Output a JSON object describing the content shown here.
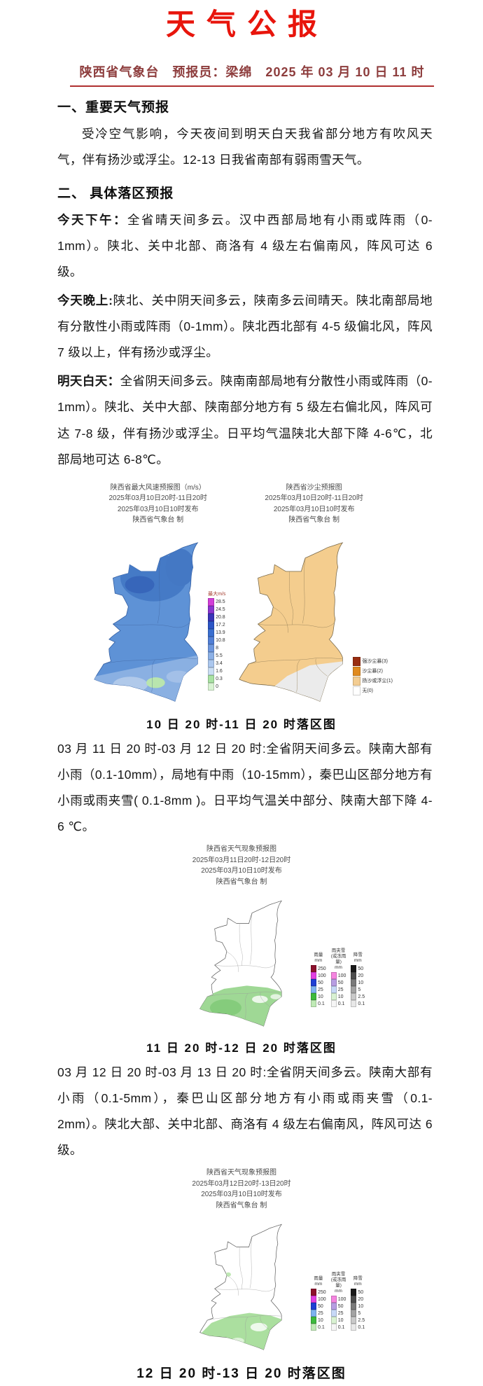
{
  "page": {
    "title": "天气公报"
  },
  "header": {
    "issuer_line": "陕西省气象台　预报员：梁绵　2025 年 03 月 10 日 11 时"
  },
  "section1": {
    "heading": "一、重要天气预报",
    "para": "受冷空气影响，今天夜间到明天白天我省部分地方有吹风天气，伴有扬沙或浮尘。12-13 日我省南部有弱雨雪天气。"
  },
  "section2": {
    "heading": "二、 具体落区预报",
    "today_pm_label": "今天下午：",
    "today_pm_text": "全省晴天间多云。汉中西部局地有小雨或阵雨（0-1mm）。陕北、关中北部、商洛有 4 级左右偏南风，阵风可达 6 级。",
    "tonight_label": "今天晚上:",
    "tonight_text": "陕北、关中阴天间多云，陕南多云间晴天。陕北南部局地有分散性小雨或阵雨（0-1mm）。陕北西北部有 4-5 级偏北风，阵风 7 级以上，伴有扬沙或浮尘。",
    "tomorrow_label": "明天白天：",
    "tomorrow_text": "全省阴天间多云。陕南南部局地有分散性小雨或阵雨（0-1mm）。陕北、关中大部、陕南部分地方有 5 级左右偏北风，阵风可达 7-8 级，伴有扬沙或浮尘。日平均气温陕北大部下降 4-6℃，北部局地可达 6-8℃。",
    "d11_text": "03 月 11 日 20 时-03 月 12 日 20 时:全省阴天间多云。陕南大部有小雨（0.1-10mm），局地有中雨（10-15mm），秦巴山区部分地方有小雨或雨夹雪( 0.1-8mm )。日平均气温关中部分、陕南大部下降 4-6 ℃。",
    "d12_text": "03 月 12 日 20 时-03 月 13 日 20 时:全省阴天间多云。陕南大部有小雨（0.1-5mm），秦巴山区部分地方有小雨或雨夹雪（0.1-2mm）。陕北大部、关中北部、商洛有 4 级左右偏南风，阵风可达 6 级。"
  },
  "captions": {
    "c1": "10 日 20 时-11 日 20 时落区图",
    "c2": "11 日 20 时-12 日 20 时落区图",
    "c3": "12 日 20 时-13 日 20 时落区图"
  },
  "maps": {
    "wind": {
      "title1": "陕西省最大风速预报图（m/s）",
      "title2": "2025年03月10日20时-11日20时",
      "title3": "2025年03月10日10时发布",
      "title4": "陕西省气象台 制",
      "legend_title": "最大m/s",
      "legend": [
        {
          "v": "28.5",
          "c": "#d23ed8"
        },
        {
          "v": "24.5",
          "c": "#8a35cf"
        },
        {
          "v": "20.8",
          "c": "#3a34b8"
        },
        {
          "v": "17.2",
          "c": "#2c55c6"
        },
        {
          "v": "13.9",
          "c": "#3a6fd0"
        },
        {
          "v": "10.8",
          "c": "#517fd6"
        },
        {
          "v": "8",
          "c": "#6d97de"
        },
        {
          "v": "5.5",
          "c": "#8cb0e6"
        },
        {
          "v": "3.4",
          "c": "#abc7ee"
        },
        {
          "v": "1.6",
          "c": "#cadef4"
        },
        {
          "v": "0.3",
          "c": "#a9e2a3"
        },
        {
          "v": "0",
          "c": "#d8f3d2"
        }
      ]
    },
    "dust": {
      "title1": "陕西省沙尘预报图",
      "title2": "2025年03月10日20时-11日20时",
      "title3": "2025年03月10日10时发布",
      "title4": "陕西省气象台 制",
      "legend": [
        {
          "label": "强沙尘暴(3)",
          "c": "#992d10"
        },
        {
          "label": "沙尘暴(2)",
          "c": "#e08a1e"
        },
        {
          "label": "扬沙或浮尘(1)",
          "c": "#f3cd92"
        },
        {
          "label": "无(0)",
          "c": "#ffffff"
        }
      ]
    },
    "wx11": {
      "title1": "陕西省天气现象预报图",
      "title2": "2025年03月11日20时-12日20时",
      "title3": "2025年03月10日10时发布",
      "title4": "陕西省气象台 制"
    },
    "wx12": {
      "title1": "陕西省天气现象预报图",
      "title2": "2025年03月12日20时-13日20时",
      "title3": "2025年03月10日10时发布",
      "title4": "陕西省气象台 制"
    },
    "precip_legend": {
      "columns": [
        {
          "title": "雨量\nmm",
          "stops": [
            {
              "v": "250",
              "c": "#8c102c"
            },
            {
              "v": "100",
              "c": "#e23fe2"
            },
            {
              "v": "50",
              "c": "#1f3fd4"
            },
            {
              "v": "25",
              "c": "#7db2f0"
            },
            {
              "v": "10",
              "c": "#3dba3d"
            },
            {
              "v": "0.1",
              "c": "#bfeab5"
            }
          ]
        },
        {
          "title": "雨夹雪\n(或冻雨量)\nmm",
          "stops": [
            {
              "v": "100",
              "c": "#f585e0"
            },
            {
              "v": "50",
              "c": "#b79de2"
            },
            {
              "v": "25",
              "c": "#c7d9f7"
            },
            {
              "v": "10",
              "c": "#d9f2d2"
            },
            {
              "v": "0.1",
              "c": "#f6f6f6"
            }
          ]
        },
        {
          "title": "降雪\nmm",
          "stops": [
            {
              "v": "50",
              "c": "#1a1a1a"
            },
            {
              "v": "20",
              "c": "#4d4d4d"
            },
            {
              "v": "10",
              "c": "#7a7a7a"
            },
            {
              "v": "5",
              "c": "#a3a3a3"
            },
            {
              "v": "2.5",
              "c": "#c9c9c9"
            },
            {
              "v": "0.1",
              "c": "#e8e8e8"
            }
          ]
        }
      ]
    }
  },
  "colors": {
    "title_red": "#e8150c",
    "header_red": "#8d3c3c",
    "rule_red": "#b03030",
    "wind_base": "#5e92d6",
    "dust_base": "#f4cd8e",
    "dust_none_gray": "#ebebeb",
    "wx_green": "#9fd895"
  }
}
